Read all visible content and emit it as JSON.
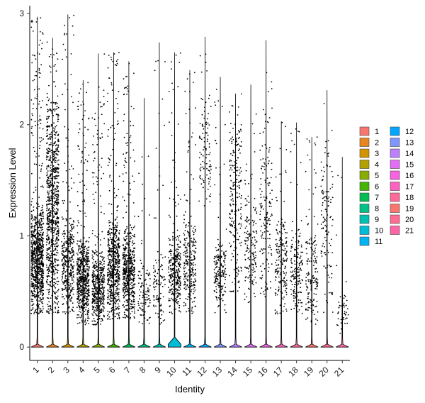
{
  "chart_data": {
    "type": "violin",
    "xlabel": "Identity",
    "ylabel": "Expression Level",
    "ylim": [
      -0.12,
      3.07
    ],
    "y_ticks": [
      "0",
      "1",
      "2",
      "3"
    ],
    "grid": false,
    "legend_placement": "right",
    "categories": [
      "1",
      "2",
      "3",
      "4",
      "5",
      "6",
      "7",
      "8",
      "9",
      "10",
      "11",
      "12",
      "13",
      "14",
      "15",
      "16",
      "17",
      "18",
      "19",
      "20",
      "21"
    ],
    "colors": [
      "#F8766D",
      "#E7851E",
      "#D09400",
      "#B2A100",
      "#89AC00",
      "#45B500",
      "#00BC51",
      "#00C087",
      "#00C0B2",
      "#00BCD6",
      "#00B3F2",
      "#00A6FF",
      "#7F96FF",
      "#BC81FF",
      "#E26EF7",
      "#F863DF",
      "#FF62BF",
      "#FF6A9A",
      "#F8766D",
      "#FF6C91",
      "#FF66A8"
    ],
    "series": [
      {
        "name": "1",
        "max": 2.97,
        "band": [
          0.3,
          1.3
        ],
        "density": 1.0
      },
      {
        "name": "2",
        "max": 2.78,
        "band": [
          0.3,
          2.3
        ],
        "density": 0.95
      },
      {
        "name": "3",
        "max": 2.99,
        "band": [
          0.3,
          1.2
        ],
        "density": 0.45
      },
      {
        "name": "4",
        "max": 2.4,
        "band": [
          0.2,
          1.0
        ],
        "density": 0.7
      },
      {
        "name": "5",
        "max": 2.64,
        "band": [
          0.2,
          0.9
        ],
        "density": 0.55
      },
      {
        "name": "6",
        "max": 2.65,
        "band": [
          0.25,
          1.2
        ],
        "density": 0.65
      },
      {
        "name": "7",
        "max": 2.57,
        "band": [
          0.25,
          1.1
        ],
        "density": 0.6
      },
      {
        "name": "8",
        "max": 2.24,
        "band": [
          0.2,
          0.8
        ],
        "density": 0.12
      },
      {
        "name": "9",
        "max": 2.74,
        "band": [
          0.2,
          0.9
        ],
        "density": 0.12
      },
      {
        "name": "10",
        "max": 2.65,
        "band": [
          0.3,
          1.0
        ],
        "density": 0.35
      },
      {
        "name": "11",
        "max": 2.49,
        "band": [
          0.3,
          1.2
        ],
        "density": 0.3
      },
      {
        "name": "12",
        "max": 2.79,
        "band": [
          1.2,
          2.3
        ],
        "density": 0.12
      },
      {
        "name": "13",
        "max": 2.43,
        "band": [
          0.3,
          1.0
        ],
        "density": 0.22
      },
      {
        "name": "14",
        "max": 2.28,
        "band": [
          0.5,
          2.3
        ],
        "density": 0.25
      },
      {
        "name": "15",
        "max": 2.36,
        "band": [
          0.4,
          1.4
        ],
        "density": 0.18
      },
      {
        "name": "16",
        "max": 2.76,
        "band": [
          0.4,
          2.0
        ],
        "density": 0.18
      },
      {
        "name": "17",
        "max": 2.03,
        "band": [
          0.3,
          1.2
        ],
        "density": 0.2
      },
      {
        "name": "18",
        "max": 2.02,
        "band": [
          0.3,
          1.1
        ],
        "density": 0.18
      },
      {
        "name": "19",
        "max": 1.89,
        "band": [
          0.2,
          1.1
        ],
        "density": 0.18
      },
      {
        "name": "20",
        "max": 2.31,
        "band": [
          0.3,
          2.0
        ],
        "density": 0.14
      },
      {
        "name": "21",
        "max": 1.71,
        "band": [
          0.1,
          0.5
        ],
        "density": 0.05
      }
    ]
  }
}
